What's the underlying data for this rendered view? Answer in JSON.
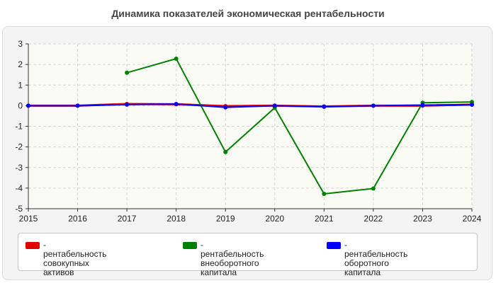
{
  "chart_data": {
    "type": "line",
    "title": "Динамика показателей экономическая рентабельности",
    "xlabel": "",
    "ylabel": "",
    "x": [
      2015,
      2016,
      2017,
      2018,
      2019,
      2020,
      2021,
      2022,
      2023,
      2024
    ],
    "xlim": [
      2015,
      2024
    ],
    "ylim": [
      -5,
      3
    ],
    "yticks": [
      3,
      2,
      1,
      0,
      -1,
      -2,
      -3,
      -4,
      -5
    ],
    "grid": true,
    "legend_position": "bottom",
    "series": [
      {
        "name": "- рентабельность совокупных активов",
        "color": "#e00000",
        "values": [
          0,
          0,
          0.08,
          0.07,
          -0.02,
          0,
          -0.04,
          0,
          0,
          0.05
        ]
      },
      {
        "name": "- рентабельность внеоборотного капитала",
        "color": "#008000",
        "values": [
          null,
          null,
          1.6,
          2.28,
          -2.25,
          -0.1,
          -4.28,
          -4.02,
          0.14,
          0.18
        ]
      },
      {
        "name": "- рентабельность оборотного капитала",
        "color": "#0000ff",
        "values": [
          0,
          0,
          0.05,
          0.08,
          -0.08,
          0,
          -0.05,
          0,
          0.03,
          0.05
        ]
      }
    ]
  },
  "legend": {
    "items": [
      {
        "line1": "- рентабельность совокупных",
        "line2": "активов",
        "color": "#e00000"
      },
      {
        "line1": "- рентабельность",
        "line2": "внеоборотного капитала",
        "color": "#008000"
      },
      {
        "line1": "- рентабельность оборотного",
        "line2": "капитала",
        "color": "#0000ff"
      }
    ]
  }
}
